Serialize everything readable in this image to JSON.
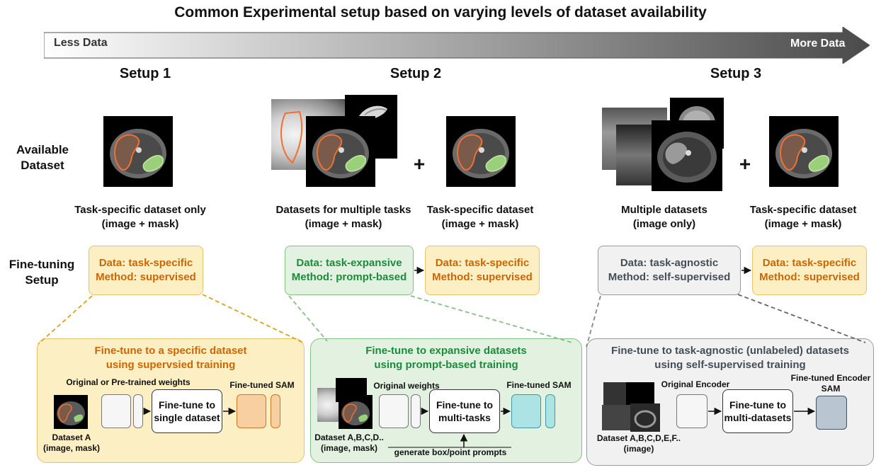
{
  "title": "Common Experimental setup based on varying levels of dataset availability",
  "arrow": {
    "left_label": "Less Data",
    "right_label": "More Data"
  },
  "row_labels": {
    "available": "Available Dataset",
    "finetuning": "Fine-tuning Setup"
  },
  "setups": [
    {
      "title": "Setup 1",
      "captions": [
        {
          "line1": "Task-specific dataset only",
          "line2": "(image + mask)"
        }
      ],
      "boxes": [
        {
          "data": "Data: task-specific",
          "method": "Method: supervised"
        }
      ],
      "panel": {
        "title1": "Fine-tune to a specific dataset",
        "title2": "using supervsied training",
        "weights_label": "Original or Pre-trained weights",
        "process_line1": "Fine-tune to",
        "process_line2": "single dataset",
        "output_label": "Fine-tuned SAM",
        "dataset_line1": "Dataset A",
        "dataset_line2": "(image, mask)"
      }
    },
    {
      "title": "Setup 2",
      "captions": [
        {
          "line1": "Datasets for multiple tasks",
          "line2": "(image + mask)"
        },
        {
          "line1": "Task-specific dataset",
          "line2": "(image + mask)"
        }
      ],
      "plus": "+",
      "boxes": [
        {
          "data": "Data: task-expansive",
          "method": "Method: prompt-based"
        },
        {
          "data": "Data: task-specific",
          "method": "Method: supervised"
        }
      ],
      "panel": {
        "title1": "Fine-tune to expansive datasets",
        "title2": "using prompt-based training",
        "weights_label": "Original weights",
        "process_line1": "Fine-tune to",
        "process_line2": "multi-tasks",
        "output_label": "Fine-tuned SAM",
        "dataset_line1": "Dataset A,B,C,D..",
        "dataset_line2": "(image, mask)",
        "prompt_label": "generate box/point prompts"
      }
    },
    {
      "title": "Setup 3",
      "captions": [
        {
          "line1": "Multiple datasets",
          "line2": "(image only)"
        },
        {
          "line1": "Task-specific dataset",
          "line2": "(image + mask)"
        }
      ],
      "plus": "+",
      "boxes": [
        {
          "data": "Data: task-agnostic",
          "method": "Method: self-supervised"
        },
        {
          "data": "Data: task-specific",
          "method": "Method: supervised"
        }
      ],
      "panel": {
        "title1": "Fine-tune to task-agnostic (unlabeled) datasets",
        "title2": "using self-supervised training",
        "weights_label": "Original Encoder",
        "process_line1": "Fine-tune to",
        "process_line2": "multi-datasets",
        "output_line1": "Fine-tuned Encoder",
        "output_line2": "SAM",
        "dataset_line1": "Dataset A,B,C,D,E,F..",
        "dataset_line2": "(image)"
      }
    }
  ],
  "colors": {
    "orange_text": "#cc6600",
    "green_text": "#1a8c3c",
    "gray_text": "#444e58",
    "orange_fill": "#fdefc4",
    "green_fill": "#e3f1e1",
    "gray_fill": "#f1f1f1",
    "sam_orange": "#f7cfa0",
    "sam_teal": "#aee3e6",
    "sam_slate": "#b9c6d2"
  }
}
